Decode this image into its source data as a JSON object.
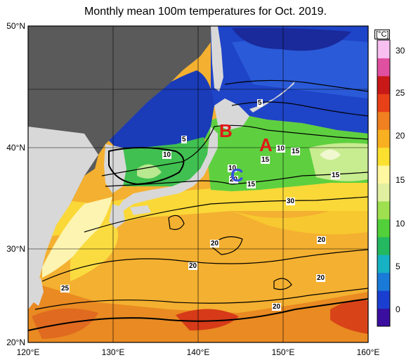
{
  "title": "Monthly mean 100m temperatures for Oct. 2019.",
  "lat_labels": [
    "50°N",
    "40°N",
    "30°N",
    "20°N"
  ],
  "lon_labels": [
    "120°E",
    "130°E",
    "140°E",
    "150°E",
    "160°E"
  ],
  "colorbar": {
    "unit": "[°C]",
    "ticks": [
      "30",
      "25",
      "20",
      "15",
      "10",
      "5",
      "0"
    ],
    "colors": [
      "#3a0fa0",
      "#1a3fd0",
      "#1a7ad8",
      "#16b2c4",
      "#24b860",
      "#52d03a",
      "#9ee050",
      "#e0f0a0",
      "#fff8a0",
      "#fce030",
      "#f8b020",
      "#f08020",
      "#e84018",
      "#c81818",
      "#e050a0",
      "#f8c0f0"
    ]
  },
  "contour_labels": [
    "5",
    "5",
    "10",
    "10",
    "15",
    "15",
    "10",
    "20",
    "15",
    "15",
    "30",
    "20",
    "20",
    "20",
    "20",
    "25",
    "20"
  ],
  "markers": [
    {
      "text": "A",
      "color": "#e01818"
    },
    {
      "text": "B",
      "color": "#e01818"
    },
    {
      "text": "C",
      "color": "#3a50e0"
    }
  ],
  "colors": {
    "land": "#5a5a5a",
    "land_light": "#d8d8d8",
    "warm": "#f2a020",
    "hot": "#e85018"
  }
}
